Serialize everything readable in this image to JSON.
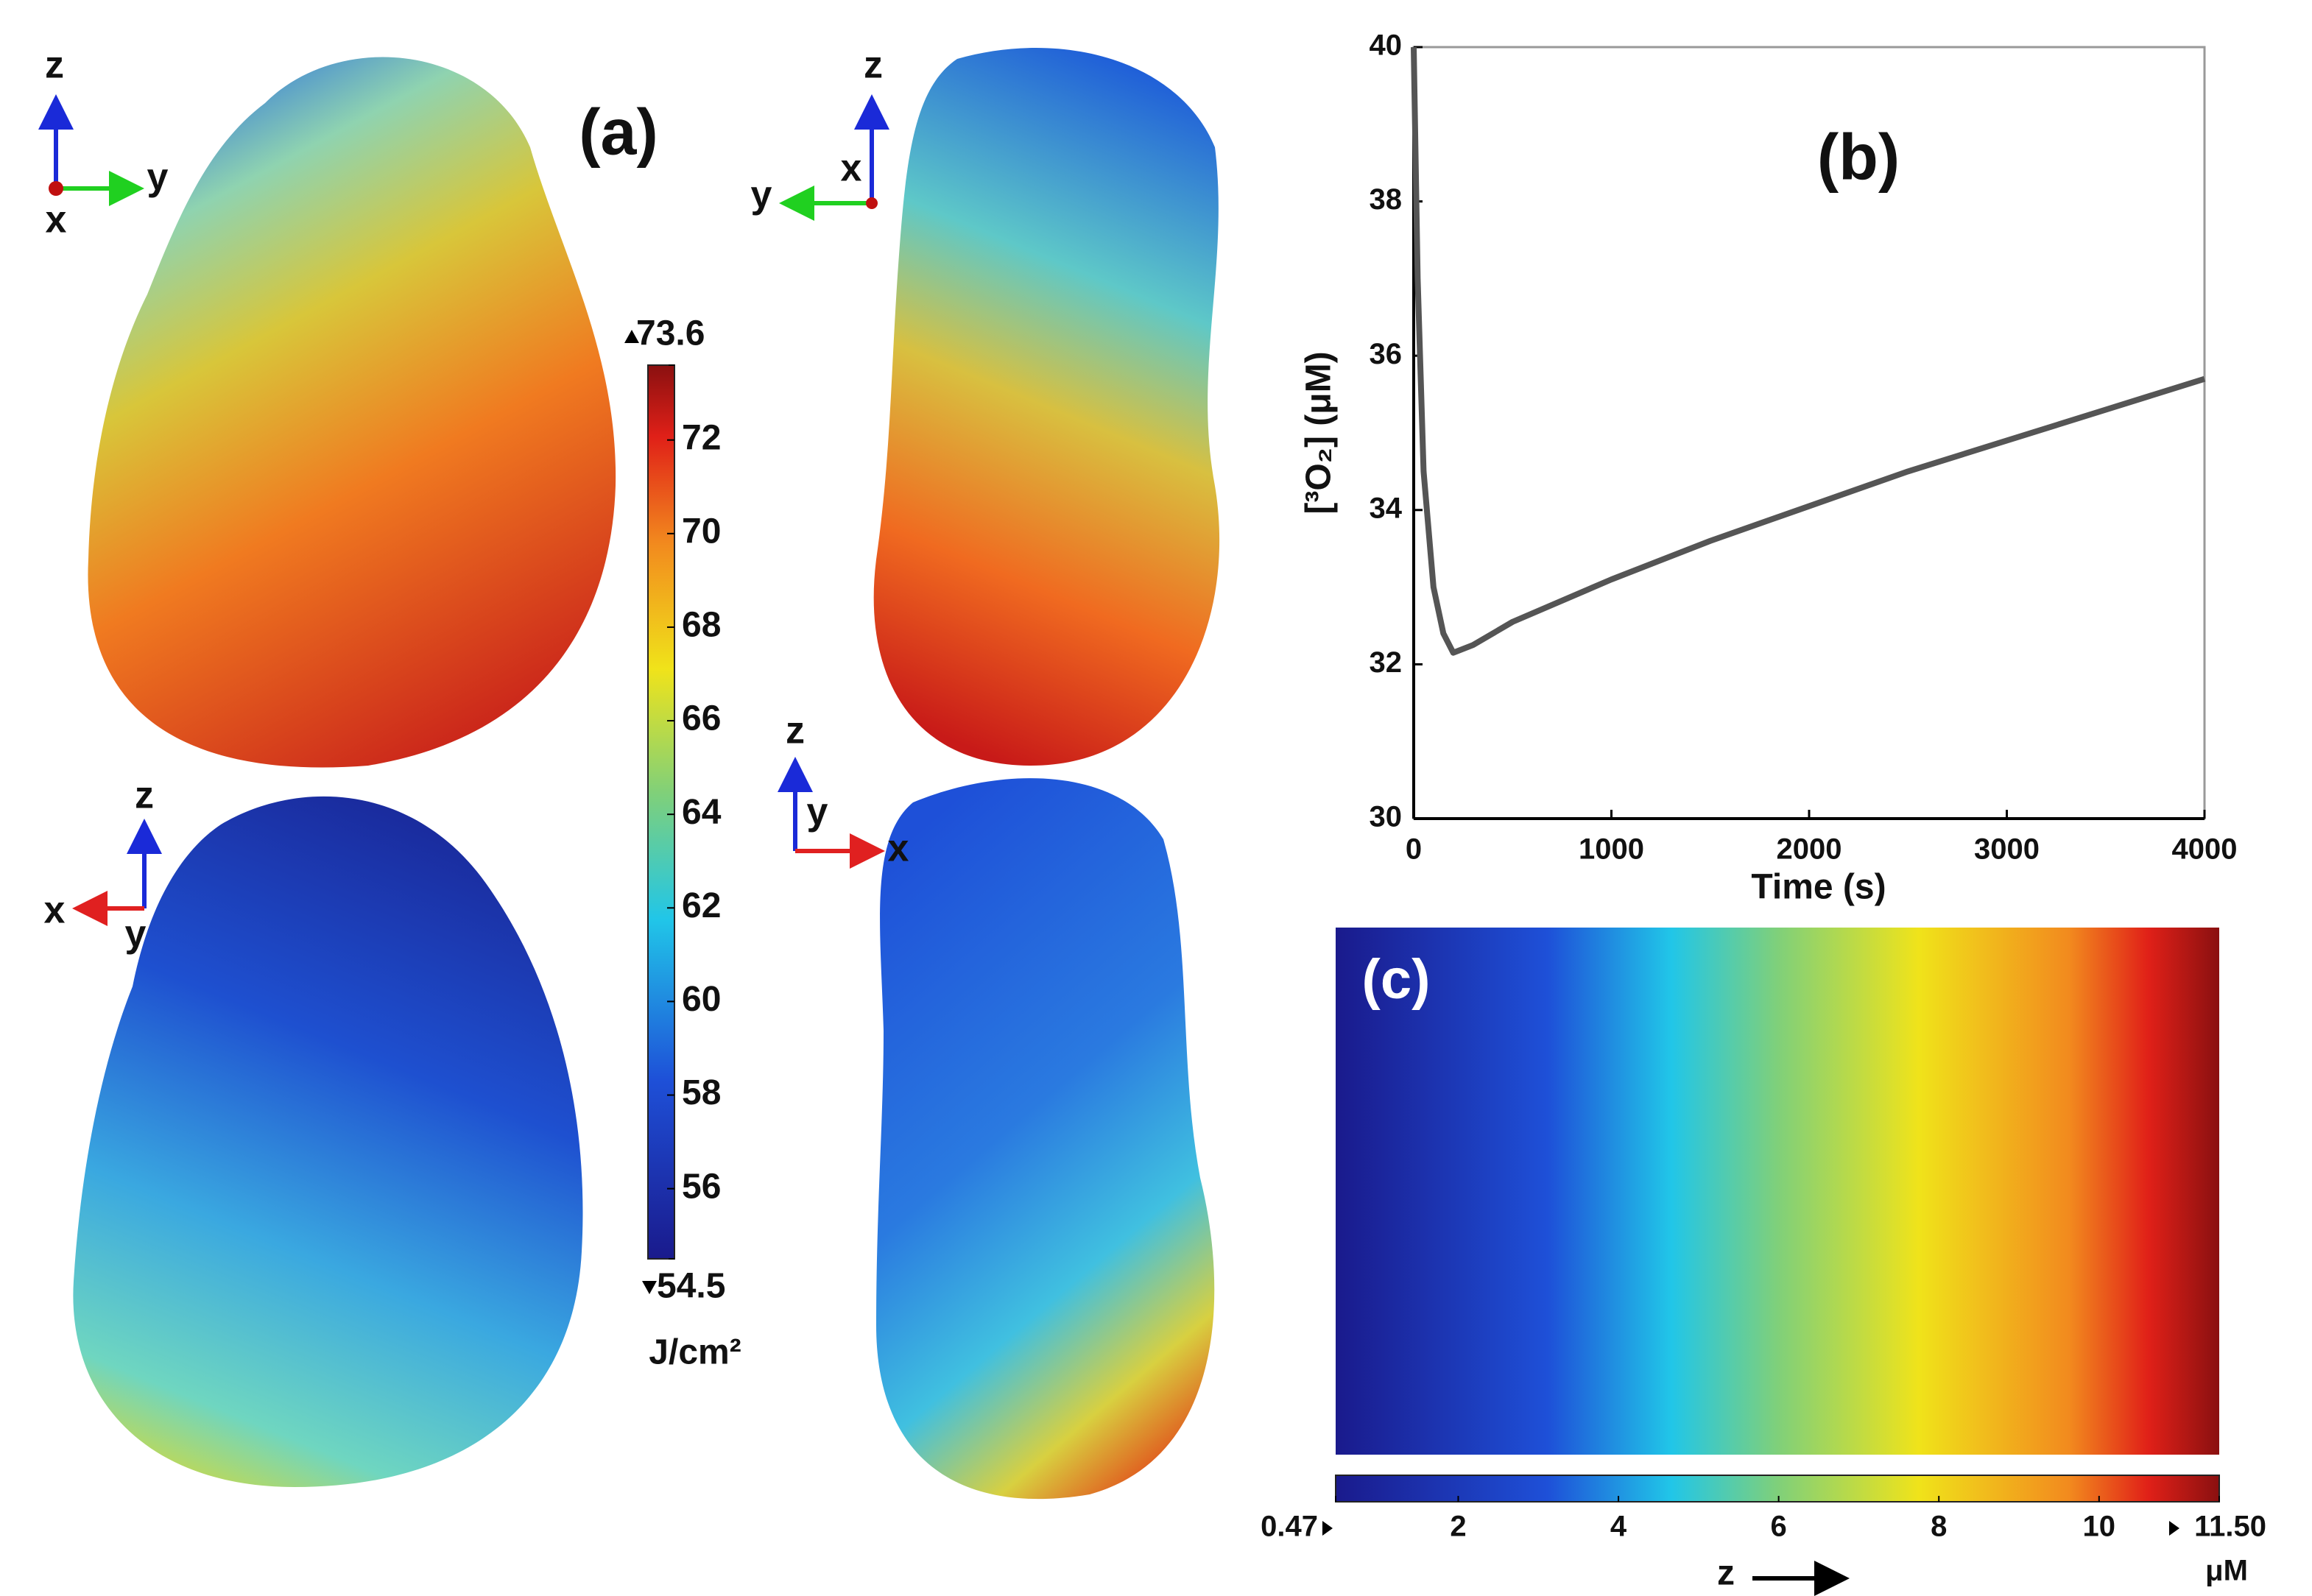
{
  "chart_data": [
    {
      "type": "line",
      "title": "(b)",
      "xlabel": "Time (s)",
      "ylabel": "[³O₂] (μM)",
      "x": [
        0,
        20,
        50,
        100,
        150,
        200,
        300,
        500,
        1000,
        1500,
        2000,
        2500,
        3000,
        3500,
        4000
      ],
      "values": [
        40,
        37,
        34.5,
        33,
        32.4,
        32.15,
        32.25,
        32.55,
        33.1,
        33.6,
        34.05,
        34.5,
        34.9,
        35.3,
        35.7
      ],
      "color": "#555555",
      "xlim": [
        0,
        4000
      ],
      "xticks": [
        0,
        1000,
        2000,
        3000,
        4000
      ],
      "ylim": [
        30,
        40
      ],
      "yticks": [
        30,
        32,
        34,
        36,
        38,
        40
      ]
    },
    {
      "type": "colorbar",
      "title": "(a)",
      "orientation": "vertical",
      "unit": "J/cm²",
      "ylim": [
        54.5,
        73.6
      ],
      "yticks": [
        73.6,
        72,
        70,
        68,
        66,
        64,
        62,
        60,
        58,
        56,
        54.5
      ]
    },
    {
      "type": "colorbar",
      "title": "(c)",
      "orientation": "horizontal",
      "xlabel": "z",
      "unit": "μM",
      "xlim": [
        0.47,
        11.5
      ],
      "xticks": [
        0.47,
        2,
        4,
        6,
        8,
        10,
        {
          "value": 11.5,
          "label": "11.50"
        }
      ]
    }
  ],
  "axis_triads": [
    {
      "z": "z",
      "y": "y",
      "x": "x"
    },
    {
      "z": "z",
      "y": "y",
      "x": "x"
    },
    {
      "z": "z",
      "x": "x",
      "y": "y"
    },
    {
      "z": "z",
      "y": "y",
      "x": "x"
    }
  ]
}
